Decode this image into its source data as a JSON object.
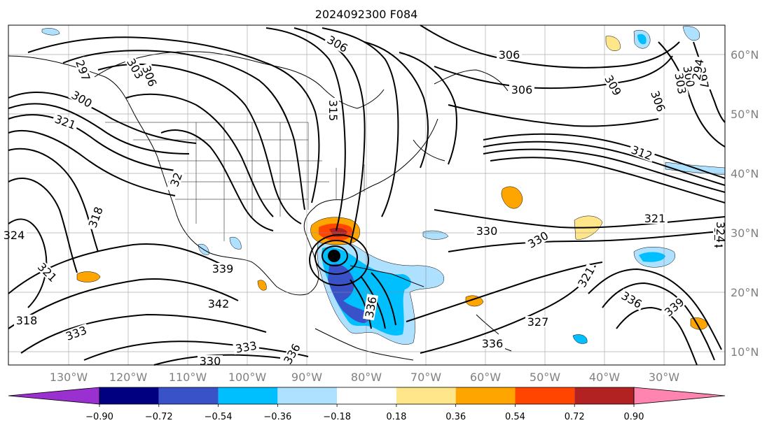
{
  "title": "2024092300 F084",
  "axes": {
    "lon_labels": [
      "130°W",
      "120°W",
      "110°W",
      "100°W",
      "90°W",
      "80°W",
      "70°W",
      "60°W",
      "50°W",
      "40°W",
      "30°W"
    ],
    "lat_labels": [
      "60°N",
      "50°N",
      "40°N",
      "30°N",
      "20°N",
      "10°N"
    ]
  },
  "colorbar": {
    "labels": [
      "−0.90",
      "−0.72",
      "−0.54",
      "−0.36",
      "−0.18",
      "0.18",
      "0.36",
      "0.54",
      "0.72",
      "0.90"
    ],
    "colors": {
      "lt_m090": "#9b30d0",
      "m090_m072": "#000080",
      "m072_m054": "#3a52c8",
      "m054_m036": "#00bfff",
      "m036_m018": "#aee0ff",
      "m018_018": "#ffffff",
      "p018_036": "#ffe68a",
      "p036_054": "#ffa500",
      "p054_072": "#ff4500",
      "p072_090": "#b22222",
      "gt_090": "#ff85b0"
    }
  },
  "contour_labels": [
    "306",
    "306",
    "306",
    "309",
    "306",
    "303",
    "300",
    "297",
    "294",
    "303",
    "306",
    "297",
    "300",
    "321",
    "315",
    "312",
    "32",
    "318",
    "324",
    "324",
    "330",
    "330",
    "321",
    "324",
    "339",
    "342",
    "321",
    "318",
    "333",
    "333",
    "330",
    "336",
    "336",
    "336",
    "327",
    "336",
    "339",
    "321"
  ],
  "storm_marker": "black-dot"
}
